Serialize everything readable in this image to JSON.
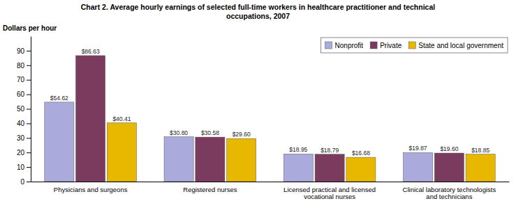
{
  "chart_data": {
    "type": "bar",
    "title": "Chart 2. Average hourly earnings of selected full-time workers in healthcare practitioner and technical\noccupations, 2007",
    "ylabel": "Dollars per hour",
    "categories": [
      "Physicians and surgeons",
      "Registered nurses",
      "Licensed practical and licensed\nvocational nurses",
      "Clinical laboratory technologists\nand technicians"
    ],
    "series": [
      {
        "name": "Nonprofit",
        "color": "#AAAADD",
        "values": [
          54.62,
          30.8,
          18.95,
          19.87
        ],
        "value_labels": [
          "$54.62",
          "$30.80",
          "$18.95",
          "$19.87"
        ]
      },
      {
        "name": "Private",
        "color": "#7B3B5E",
        "values": [
          86.63,
          30.58,
          18.79,
          19.6
        ],
        "value_labels": [
          "$86.63",
          "$30.58",
          "$18.79",
          "$19.60"
        ]
      },
      {
        "name": "State and local government",
        "color": "#E8B800",
        "values": [
          40.41,
          29.6,
          16.68,
          18.85
        ],
        "value_labels": [
          "$40.41",
          "$29.60",
          "$16.68",
          "$18.85"
        ]
      }
    ],
    "ylim": [
      0,
      100
    ],
    "yticks": [
      0,
      10,
      20,
      30,
      40,
      50,
      60,
      70,
      80,
      90
    ],
    "data_labels": true,
    "grid": false,
    "legend": "upper right"
  }
}
